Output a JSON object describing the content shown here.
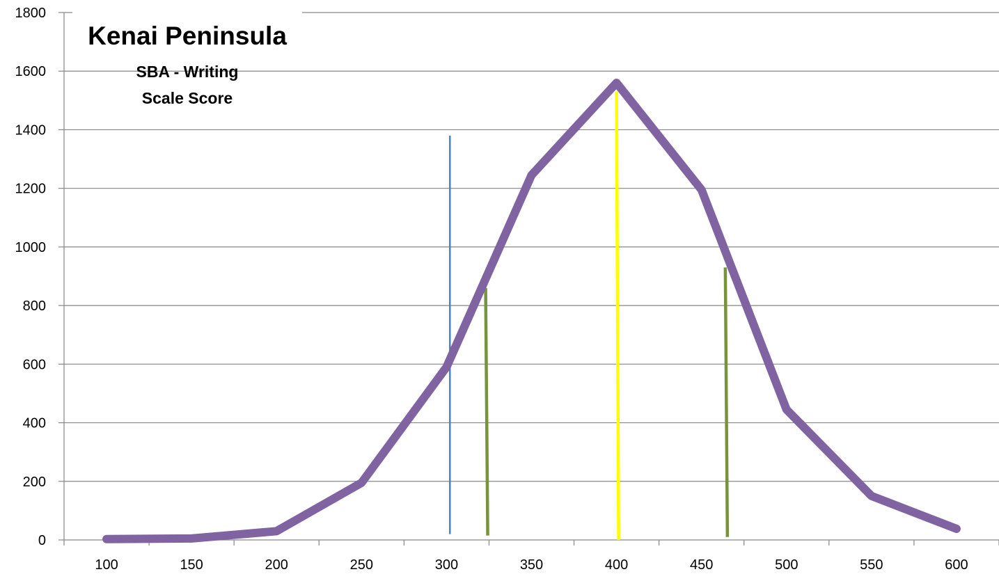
{
  "chart_data": {
    "type": "line",
    "title": "Kenai Peninsula",
    "subtitle_lines": [
      "SBA - Writing",
      "Scale Score"
    ],
    "xlabel": "",
    "ylabel": "",
    "categories": [
      "100",
      "150",
      "200",
      "250",
      "300",
      "350",
      "400",
      "450",
      "500",
      "550",
      "600"
    ],
    "series": [
      {
        "values": [
          3,
          5,
          30,
          195,
          590,
          1245,
          1560,
          1195,
          445,
          150,
          38
        ],
        "color": "#8064A2"
      }
    ],
    "reference_lines": [
      {
        "x": 302,
        "y_top": 1380,
        "y_bottom": 20,
        "color": "#4F81BD"
      },
      {
        "x": 323,
        "y_top": 860,
        "y_bottom": 15,
        "color": "#77933C"
      },
      {
        "x": 400,
        "y_top": 1530,
        "y_bottom": 0,
        "color": "#FFFF00"
      },
      {
        "x": 464,
        "y_top": 930,
        "y_bottom": 10,
        "color": "#77933C"
      }
    ],
    "ylim": [
      0,
      1800
    ],
    "yticks": [
      0,
      200,
      400,
      600,
      800,
      1000,
      1200,
      1400,
      1600,
      1800
    ],
    "grid": true,
    "legend": "none"
  }
}
